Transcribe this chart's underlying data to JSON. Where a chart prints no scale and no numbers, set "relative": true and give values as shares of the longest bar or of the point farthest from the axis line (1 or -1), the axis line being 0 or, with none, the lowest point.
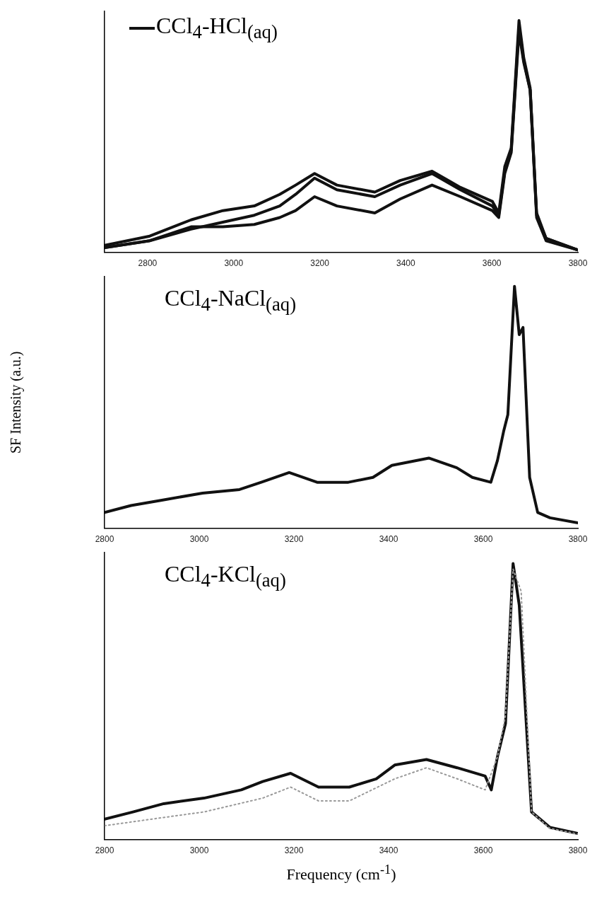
{
  "chart_data": [
    {
      "type": "line",
      "relative": true,
      "xlim": [
        2700,
        3800
      ],
      "xticks": [
        2800,
        3000,
        3200,
        3400,
        3600,
        3800
      ],
      "tick_labels": "x",
      "legend": "top left",
      "line_style": "solid",
      "series": [
        {
          "name": "CCl$_{4}$-HCl$_{(aq)}$",
          "color": "#111111",
          "x": [
            2700,
            2805,
            2901,
            2975,
            3048,
            3107,
            3144,
            3188,
            3240,
            3328,
            3387,
            3461,
            3527,
            3601,
            3616,
            3630,
            3645,
            3663,
            3674,
            3689,
            3704,
            3726,
            3800
          ],
          "values": [
            0.03,
            0.07,
            0.14,
            0.18,
            0.2,
            0.25,
            0.29,
            0.34,
            0.29,
            0.26,
            0.31,
            0.35,
            0.28,
            0.22,
            0.17,
            0.37,
            0.45,
            1.0,
            0.84,
            0.71,
            0.17,
            0.06,
            0.01
          ]
        },
        {
          "color": "#111111",
          "x": [
            2700,
            2805,
            2901,
            2975,
            3048,
            3107,
            3144,
            3188,
            3240,
            3328,
            3387,
            3461,
            3527,
            3601,
            3616,
            3630,
            3645,
            3663,
            3674,
            3689,
            3704,
            3726,
            3800
          ],
          "values": [
            0.02,
            0.05,
            0.1,
            0.13,
            0.16,
            0.2,
            0.25,
            0.32,
            0.27,
            0.24,
            0.29,
            0.34,
            0.27,
            0.2,
            0.16,
            0.35,
            0.44,
            0.97,
            0.83,
            0.7,
            0.16,
            0.06,
            0.01
          ]
        },
        {
          "color": "#111111",
          "x": [
            2700,
            2805,
            2901,
            2975,
            3048,
            3107,
            3144,
            3188,
            3240,
            3328,
            3387,
            3461,
            3527,
            3601,
            3616,
            3630,
            3645,
            3663,
            3674,
            3689,
            3704,
            3726,
            3800
          ],
          "values": [
            0.02,
            0.05,
            0.11,
            0.11,
            0.12,
            0.15,
            0.18,
            0.24,
            0.2,
            0.17,
            0.23,
            0.29,
            0.24,
            0.18,
            0.15,
            0.34,
            0.43,
            0.95,
            0.82,
            0.7,
            0.15,
            0.05,
            0.01
          ]
        }
      ]
    },
    {
      "type": "line",
      "relative": true,
      "xlim": [
        2800,
        3800
      ],
      "xticks": [
        2800,
        3000,
        3200,
        3400,
        3600,
        3800
      ],
      "tick_labels": "x",
      "ylabel": "SF Intensity (a.u.)",
      "line_style": "solid",
      "annotations": [
        "CCl$_{4}$-NaCl$_{(aq)}$"
      ],
      "series": [
        {
          "color": "#111111",
          "x": [
            2800,
            2856,
            2921,
            3007,
            3085,
            3131,
            3190,
            3249,
            3315,
            3367,
            3407,
            3485,
            3544,
            3577,
            3616,
            3630,
            3643,
            3652,
            3666,
            3676,
            3684,
            3698,
            3715,
            3741,
            3800
          ],
          "values": [
            0.065,
            0.094,
            0.116,
            0.145,
            0.16,
            0.19,
            0.23,
            0.19,
            0.19,
            0.21,
            0.26,
            0.29,
            0.25,
            0.21,
            0.19,
            0.28,
            0.4,
            0.47,
            1.0,
            0.8,
            0.83,
            0.21,
            0.065,
            0.043,
            0.022
          ]
        }
      ]
    },
    {
      "type": "line",
      "relative": true,
      "xlim": [
        2800,
        3800
      ],
      "xticks": [
        2800,
        3000,
        3200,
        3400,
        3600,
        3800
      ],
      "tick_labels": "x",
      "xlabel": "Frequency (cm$^{-1}$)",
      "line_style": "solid",
      "annotations": [
        "CCl$_{4}$-KCl$_{(aq)}$"
      ],
      "series": [
        {
          "color": "#999999",
          "line_style": "dotted",
          "x": [
            2800,
            2925,
            3010,
            3134,
            3193,
            3252,
            3317,
            3413,
            3480,
            3545,
            3604,
            3630,
            3647,
            3663,
            3680,
            3702,
            3741,
            3800
          ],
          "values": [
            0.05,
            0.08,
            0.1,
            0.15,
            0.19,
            0.14,
            0.14,
            0.22,
            0.26,
            0.22,
            0.18,
            0.3,
            0.45,
            0.98,
            0.9,
            0.1,
            0.04,
            0.02
          ]
        },
        {
          "color": "#111111",
          "x": [
            2800,
            2860,
            2925,
            3010,
            3089,
            3134,
            3193,
            3252,
            3317,
            3374,
            3413,
            3480,
            3545,
            3604,
            3617,
            3630,
            3647,
            3663,
            3676,
            3702,
            3741,
            3800
          ],
          "values": [
            0.074,
            0.1,
            0.13,
            0.15,
            0.18,
            0.21,
            0.24,
            0.19,
            0.19,
            0.22,
            0.27,
            0.29,
            0.26,
            0.23,
            0.18,
            0.3,
            0.42,
            1.0,
            0.85,
            0.1,
            0.044,
            0.022
          ]
        }
      ]
    }
  ]
}
